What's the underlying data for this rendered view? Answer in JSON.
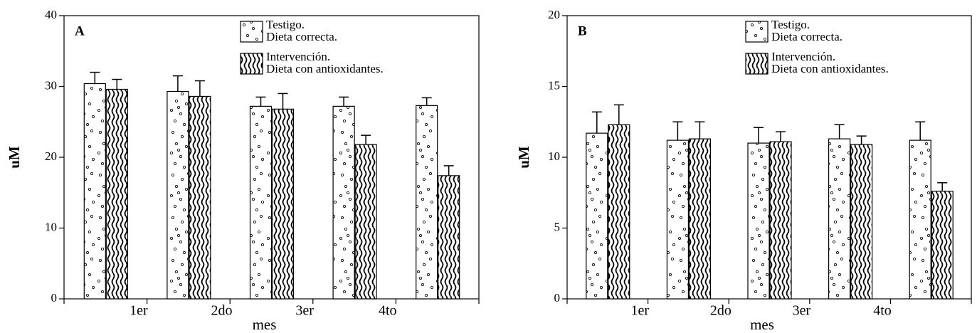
{
  "chart_data": [
    {
      "type": "bar",
      "title": "A",
      "xlabel": "mes",
      "ylabel": "uM",
      "categories": [
        "1er",
        "2do",
        "3er",
        "4to",
        null
      ],
      "ylim": [
        0,
        40
      ],
      "yticks": [
        0,
        10,
        20,
        30,
        40
      ],
      "series": [
        {
          "name": "Testigo.",
          "description": "Dieta correcta.",
          "pattern": "dots",
          "color": "#000000",
          "values": [
            30.4,
            29.3,
            27.2,
            27.2,
            27.3
          ],
          "errors": [
            1.6,
            2.2,
            1.3,
            1.3,
            1.1
          ]
        },
        {
          "name": "Intervención.",
          "description": "Dieta con antioxidantes.",
          "pattern": "waves",
          "color": "#000000",
          "values": [
            29.6,
            28.6,
            26.8,
            21.8,
            17.4
          ],
          "errors": [
            1.4,
            2.2,
            2.2,
            1.3,
            1.4
          ]
        }
      ]
    },
    {
      "type": "bar",
      "title": "B",
      "xlabel": "mes",
      "ylabel": "uM",
      "categories": [
        "1er",
        "2do",
        "3er",
        "4to",
        null
      ],
      "ylim": [
        0,
        20
      ],
      "yticks": [
        0,
        5,
        10,
        15,
        20
      ],
      "series": [
        {
          "name": "Testigo.",
          "description": "Dieta correcta.",
          "pattern": "dots",
          "color": "#000000",
          "values": [
            11.7,
            11.2,
            11.0,
            11.3,
            11.2
          ],
          "errors": [
            1.5,
            1.3,
            1.1,
            1.0,
            1.3
          ]
        },
        {
          "name": "Intervención.",
          "description": "Dieta con antioxidantes.",
          "pattern": "waves",
          "color": "#000000",
          "values": [
            12.3,
            11.3,
            11.1,
            10.9,
            7.6
          ],
          "errors": [
            1.4,
            1.2,
            0.7,
            0.6,
            0.6
          ]
        }
      ]
    }
  ]
}
